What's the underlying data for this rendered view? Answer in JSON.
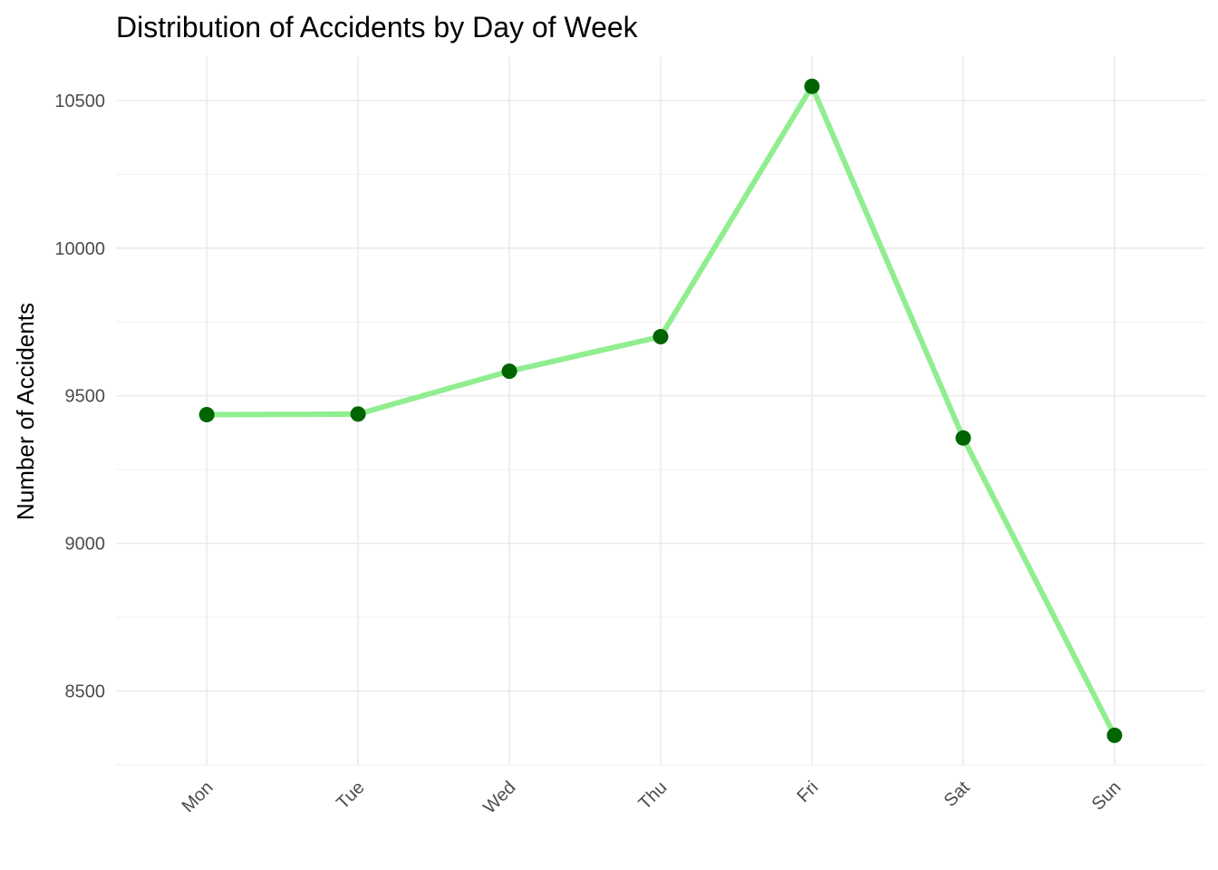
{
  "chart_data": {
    "type": "line",
    "title": "Distribution of Accidents by Day of Week",
    "xlabel": "",
    "ylabel": "Number of Accidents",
    "categories": [
      "Mon",
      "Tue",
      "Wed",
      "Thu",
      "Fri",
      "Sat",
      "Sun"
    ],
    "series": [
      {
        "values": [
          9436,
          9438,
          9583,
          9700,
          10548,
          9357,
          8350
        ]
      }
    ],
    "y_ticks": [
      8500,
      9000,
      9500,
      10000,
      10500
    ],
    "ylim": [
      8250,
      10650
    ],
    "grid": true,
    "legend": "none",
    "colors": {
      "line": "#90ee90",
      "point": "#006400"
    }
  }
}
